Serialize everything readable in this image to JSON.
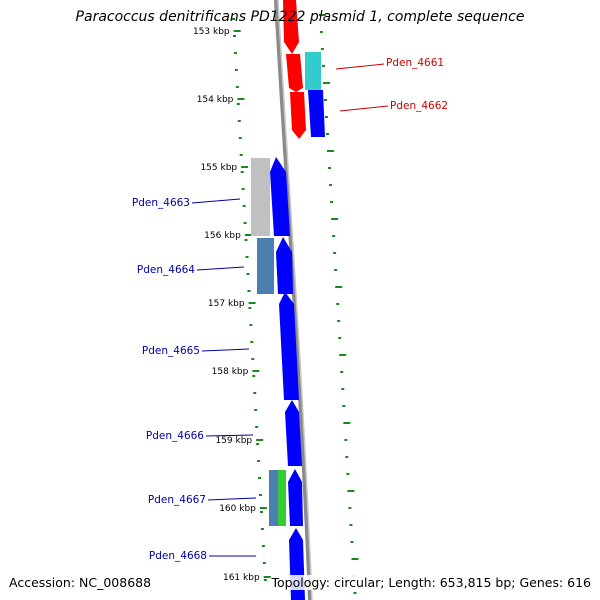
{
  "title": "Paracoccus denitrificans PD1222 plasmid 1, complete sequence",
  "footer": {
    "accession": "Accession: NC_008688",
    "summary": "Topology: circular; Length: 653,815 bp; Genes: 616"
  },
  "kbp_labels": [
    "153 kbp",
    "154 kbp",
    "155 kbp",
    "156 kbp",
    "157 kbp",
    "158 kbp",
    "159 kbp",
    "160 kbp",
    "161 kbp"
  ],
  "gene_labels": [
    {
      "text": "Pden_4661",
      "side": "right",
      "color": "#cc0000"
    },
    {
      "text": "Pden_4662",
      "side": "right",
      "color": "#cc0000"
    },
    {
      "text": "Pden_4663",
      "side": "left",
      "color": "#0000aa"
    },
    {
      "text": "Pden_4664",
      "side": "left",
      "color": "#0000aa"
    },
    {
      "text": "Pden_4665",
      "side": "left",
      "color": "#0000aa"
    },
    {
      "text": "Pden_4666",
      "side": "left",
      "color": "#0000aa"
    },
    {
      "text": "Pden_4667",
      "side": "left",
      "color": "#0000aa"
    },
    {
      "text": "Pden_4668",
      "side": "left",
      "color": "#0000aa"
    }
  ],
  "colors": {
    "backbone": "#8a8a8a",
    "gene_forward_red": "#ff0000",
    "gene_forward_blue": "#0000ff",
    "cog_cyan": "#33cccc",
    "cog_gray": "#c0c0c0",
    "cog_steelblue": "#4a7fb0",
    "cog_green": "#33cc33",
    "tick_green": "#1a8a1a",
    "label_red": "#cc0000",
    "label_blue": "#0000aa"
  },
  "icons": [
    "arrow-gene-icon"
  ]
}
